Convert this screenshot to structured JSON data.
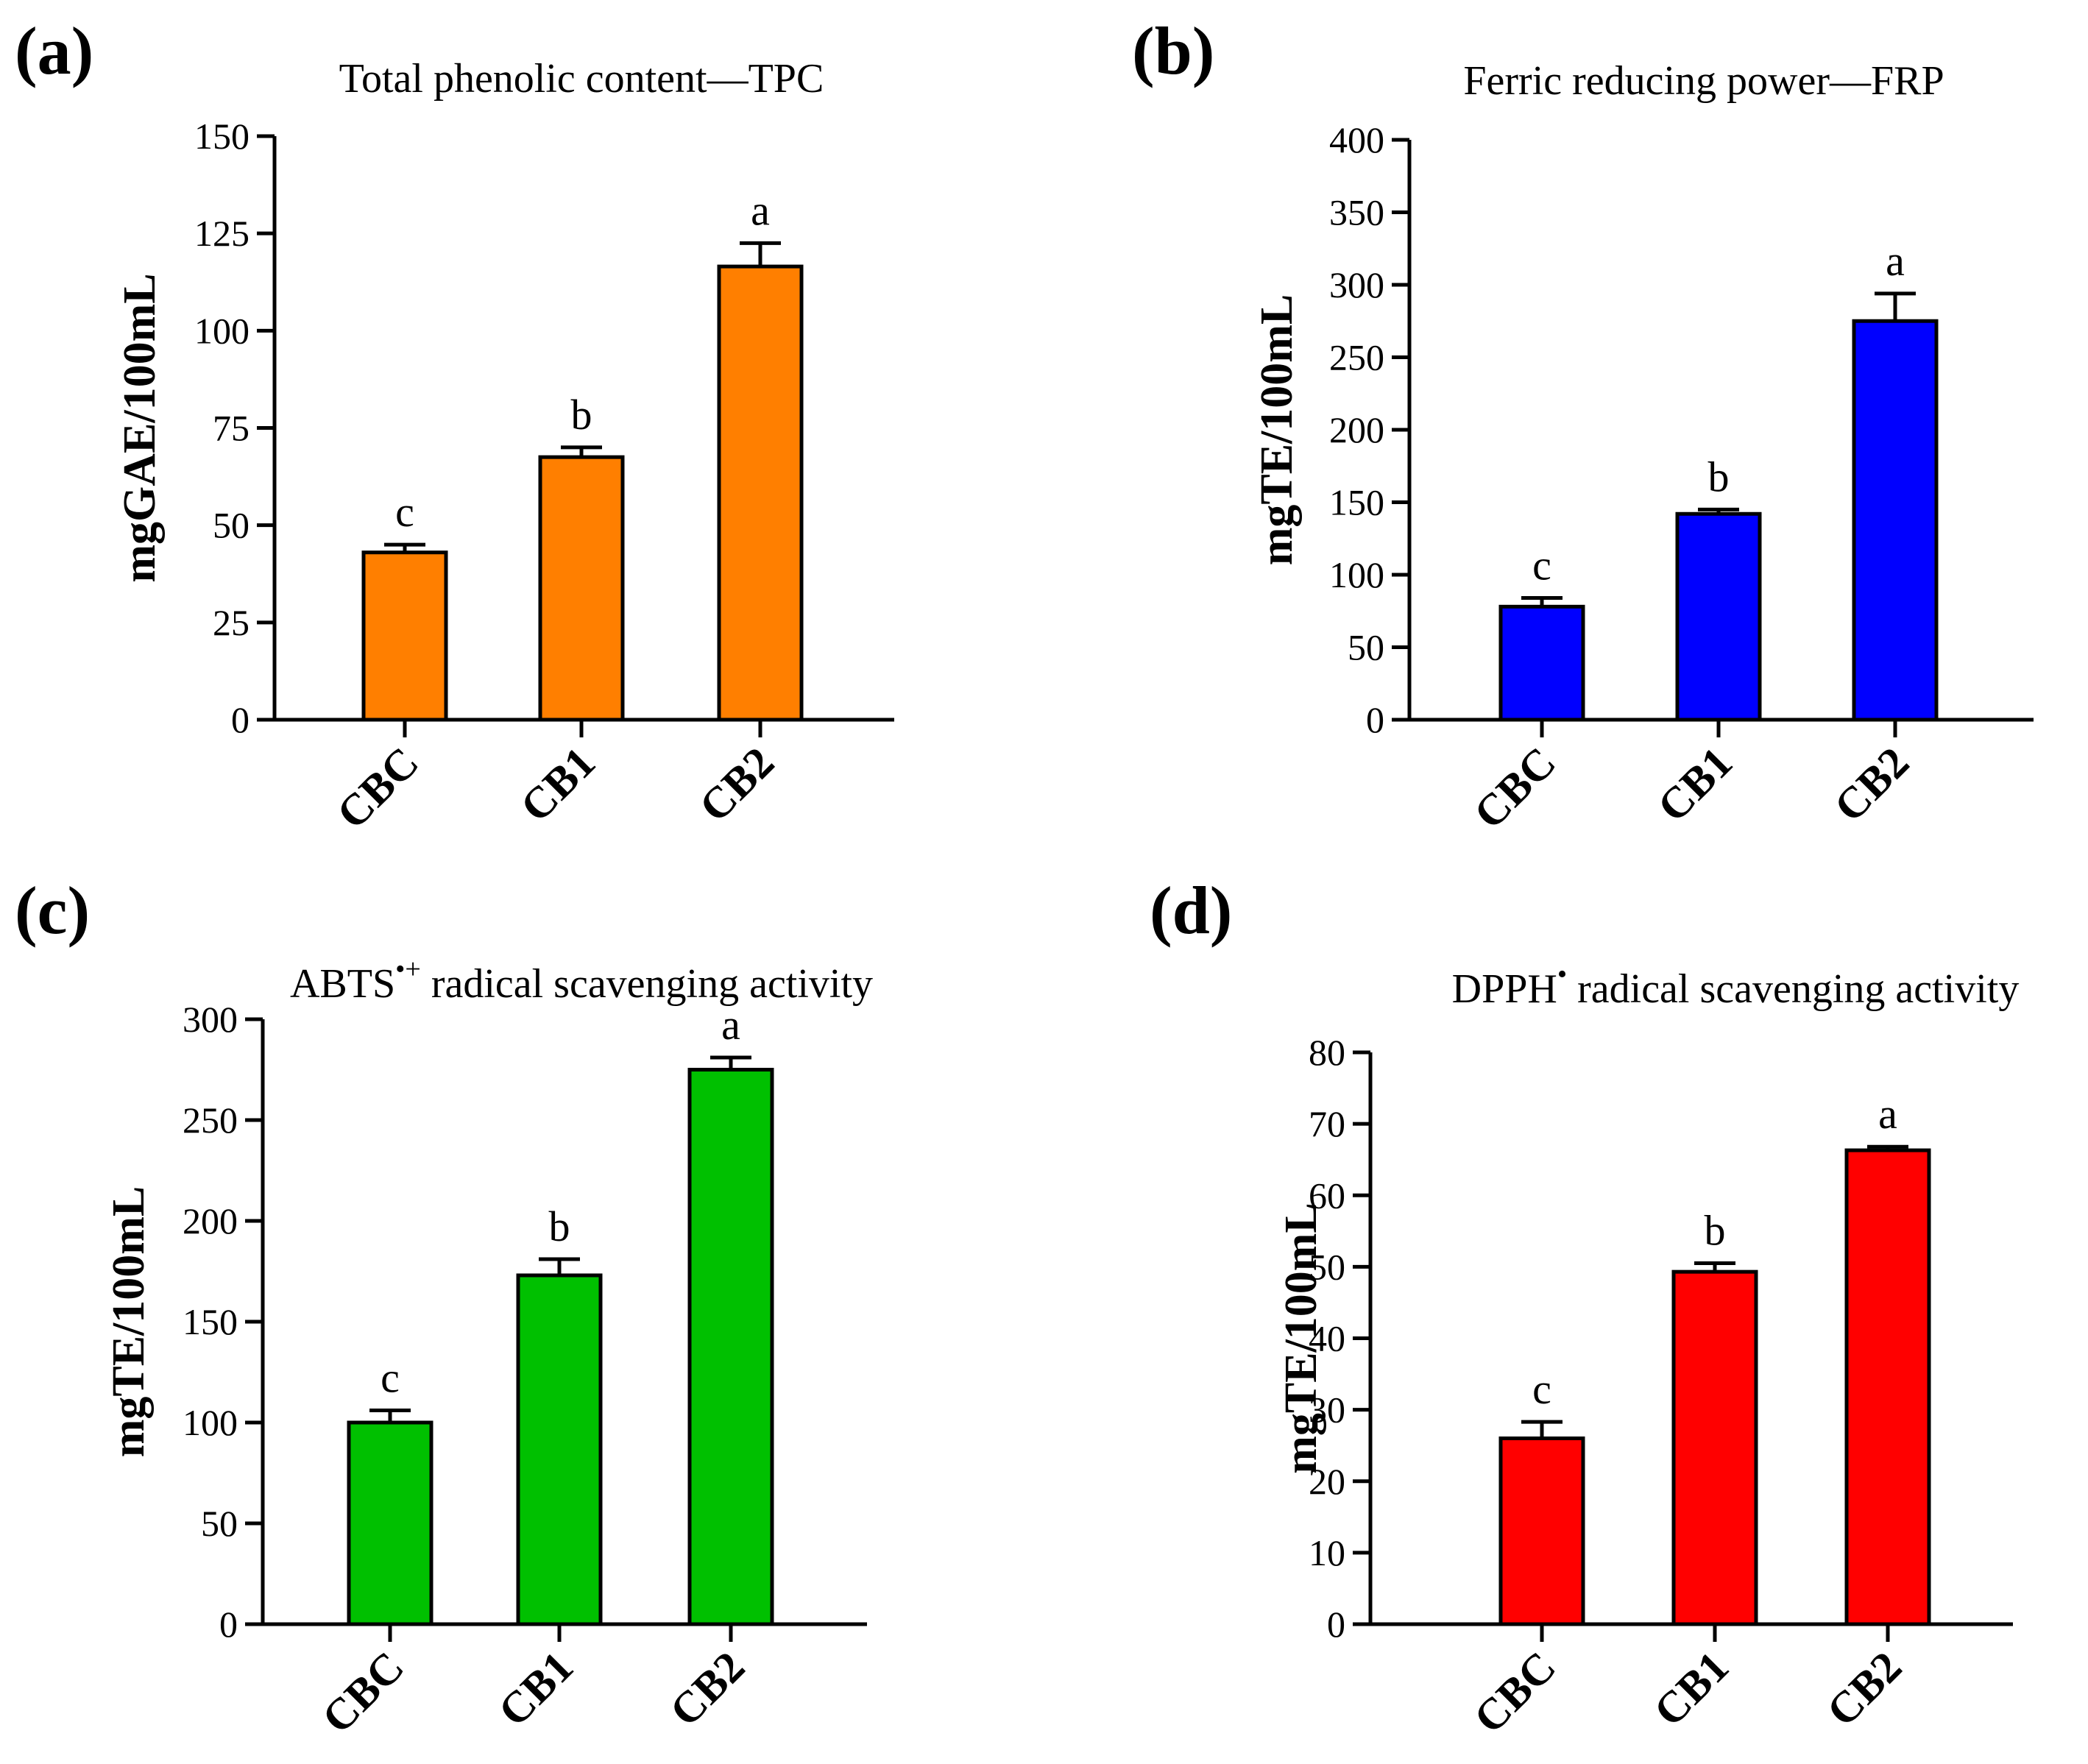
{
  "figure": {
    "panels": [
      {
        "letter": "(a)",
        "title_main": "Total phenolic content—TPC",
        "title_sup": "",
        "title_rest": ""
      },
      {
        "letter": "(b)",
        "title_main": "Ferric reducing power—FRP",
        "title_sup": "",
        "title_rest": ""
      },
      {
        "letter": "(c)",
        "title_main": "ABTS",
        "title_sup": "•+",
        "title_rest": " radical scavenging activity"
      },
      {
        "letter": "(d)",
        "title_main": "DPPH",
        "title_sup": "•",
        "title_rest": " radical scavenging activity"
      }
    ]
  },
  "chart_data": [
    {
      "type": "bar",
      "title": "Total phenolic content—TPC",
      "xlabel": "",
      "ylabel": "mgGAE/100mL",
      "categories": [
        "CBC",
        "CB1",
        "CB2"
      ],
      "values": [
        43,
        67.5,
        116.5
      ],
      "errors": [
        2,
        2.5,
        6
      ],
      "significance": [
        "c",
        "b",
        "a"
      ],
      "ylim": [
        0,
        150
      ],
      "yticks": [
        0,
        25,
        50,
        75,
        100,
        125,
        150
      ],
      "color": "#ff7f00"
    },
    {
      "type": "bar",
      "title": "Ferric reducing power—FRP",
      "xlabel": "",
      "ylabel": "mgTE/100mL",
      "categories": [
        "CBC",
        "CB1",
        "CB2"
      ],
      "values": [
        78,
        142,
        275
      ],
      "errors": [
        6,
        3,
        19
      ],
      "significance": [
        "c",
        "b",
        "a"
      ],
      "ylim": [
        0,
        400
      ],
      "yticks": [
        0,
        50,
        100,
        150,
        200,
        250,
        300,
        350,
        400
      ],
      "color": "#0000ff"
    },
    {
      "type": "bar",
      "title": "ABTS•+ radical scavenging activity",
      "xlabel": "",
      "ylabel": "mgTE/100mL",
      "categories": [
        "CBC",
        "CB1",
        "CB2"
      ],
      "values": [
        100,
        173,
        275
      ],
      "errors": [
        6,
        8,
        6
      ],
      "significance": [
        "c",
        "b",
        "a"
      ],
      "ylim": [
        0,
        300
      ],
      "yticks": [
        0,
        50,
        100,
        150,
        200,
        250,
        300
      ],
      "color": "#00c000"
    },
    {
      "type": "bar",
      "title": "DPPH• radical scavenging activity",
      "xlabel": "",
      "ylabel": "mgTE/100mL",
      "categories": [
        "CBC",
        "CB1",
        "CB2"
      ],
      "values": [
        26,
        49.3,
        66.3
      ],
      "errors": [
        2.3,
        1.2,
        0.5
      ],
      "significance": [
        "c",
        "b",
        "a"
      ],
      "ylim": [
        0,
        80
      ],
      "yticks": [
        0,
        10,
        20,
        30,
        40,
        50,
        60,
        70,
        80
      ],
      "color": "#ff0000"
    }
  ]
}
